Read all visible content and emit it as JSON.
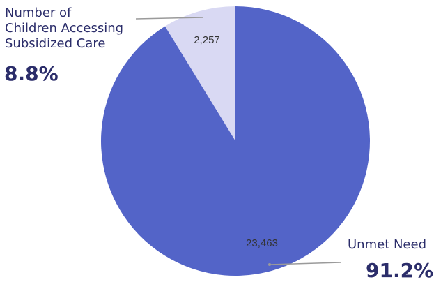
{
  "chart_data": {
    "type": "pie",
    "slices": [
      {
        "label": "Number of Children Accessing Subsidized Care",
        "value": 2257,
        "value_label": "2,257",
        "percent_label": "8.8%",
        "color": "#d9d9f3"
      },
      {
        "label": "Unmet Need",
        "value": 23463,
        "value_label": "23,463",
        "percent_label": "91.2%",
        "color": "#5364c8"
      }
    ],
    "start_angle_deg": 0,
    "direction": "counterclockwise",
    "title": "",
    "legend": "none"
  },
  "callouts": {
    "left": {
      "line1": "Number of",
      "line2": "Children Accessing",
      "line3": "Subsidized Care",
      "percent": "8.8%"
    },
    "right": {
      "label": "Unmet Need",
      "percent": "91.2%"
    }
  },
  "colors": {
    "text": "#2b2d6a",
    "leader_line": "#9a9a9a",
    "value_text": "#333333"
  }
}
